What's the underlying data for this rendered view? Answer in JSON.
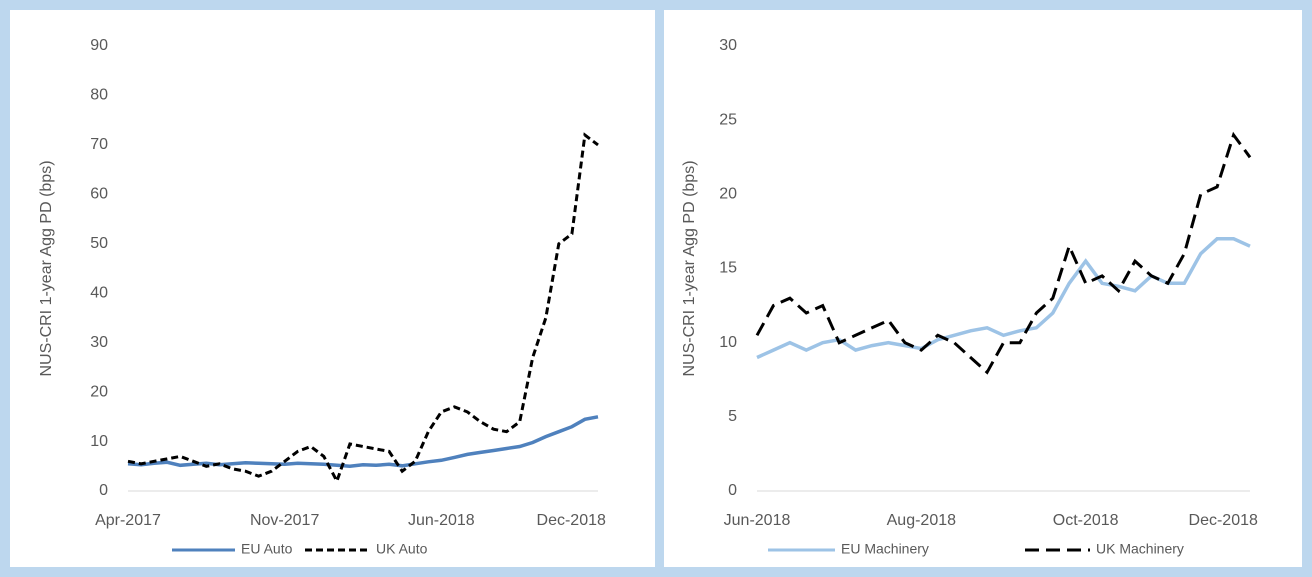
{
  "chart_data": [
    {
      "type": "line",
      "y_label": "NUS-CRI 1-year Agg PD (bps)",
      "categories": [
        "Apr-2017",
        null,
        null,
        null,
        null,
        null,
        null,
        null,
        null,
        null,
        null,
        null,
        "Nov-2017",
        null,
        null,
        null,
        null,
        null,
        null,
        null,
        null,
        null,
        null,
        null,
        "Jun-2018",
        null,
        null,
        null,
        null,
        null,
        null,
        null,
        null,
        null,
        null,
        null,
        "Dec-2018"
      ],
      "ylim": [
        0,
        90
      ],
      "yticks": [
        0,
        10,
        20,
        30,
        40,
        50,
        60,
        70,
        80,
        90
      ],
      "series": [
        {
          "name": "EU Auto",
          "color": "#4f81bd",
          "dash": "solid",
          "values": [
            5.5,
            5.3,
            5.6,
            5.8,
            5.2,
            5.4,
            5.6,
            5.3,
            5.5,
            5.7,
            5.6,
            5.5,
            5.4,
            5.6,
            5.5,
            5.4,
            5.2,
            5.0,
            5.3,
            5.2,
            5.4,
            5.1,
            5.5,
            5.9,
            6.2,
            6.8,
            7.4,
            7.8,
            8.2,
            8.6,
            9,
            9.8,
            11,
            12,
            13,
            14.5,
            15
          ]
        },
        {
          "name": "UK Auto",
          "color": "#000000",
          "dash": "short",
          "values": [
            6,
            5.5,
            6,
            6.5,
            7,
            6,
            5,
            5.5,
            4.5,
            4,
            3,
            4,
            6,
            8,
            9,
            7,
            2,
            9.5,
            9,
            8.5,
            8,
            4,
            6,
            12,
            16,
            17,
            16,
            14,
            12.5,
            12,
            14,
            27,
            35,
            50,
            52,
            72,
            70
          ]
        }
      ]
    },
    {
      "type": "line",
      "y_label": "NUS-CRI 1-year Agg PD (bps)",
      "categories": [
        "Jun-2018",
        null,
        null,
        null,
        null,
        null,
        null,
        null,
        null,
        null,
        "Aug-2018",
        null,
        null,
        null,
        null,
        null,
        null,
        null,
        null,
        null,
        "Oct-2018",
        null,
        null,
        null,
        null,
        null,
        null,
        null,
        null,
        null,
        "Dec-2018"
      ],
      "ylim": [
        0,
        30
      ],
      "yticks": [
        0,
        5,
        10,
        15,
        20,
        25,
        30
      ],
      "series": [
        {
          "name": "EU Machinery",
          "color": "#9dc3e6",
          "dash": "solid",
          "values": [
            9,
            9.5,
            10,
            9.5,
            10,
            10.2,
            9.5,
            9.8,
            10,
            9.8,
            9.6,
            10.2,
            10.5,
            10.8,
            11,
            10.5,
            10.8,
            11,
            12,
            14,
            15.5,
            14,
            13.8,
            13.5,
            14.5,
            14,
            14,
            16,
            17,
            17,
            16.5
          ]
        },
        {
          "name": "UK Machinery",
          "color": "#000000",
          "dash": "long",
          "values": [
            10.5,
            12.5,
            13,
            12,
            12.5,
            10,
            10.5,
            11,
            11.5,
            10,
            9.5,
            10.5,
            10,
            9,
            8,
            10,
            10,
            12,
            13,
            16.5,
            14,
            14.5,
            13.5,
            15.5,
            14.5,
            14,
            16,
            20,
            20.5,
            24,
            22.5
          ]
        }
      ]
    }
  ]
}
